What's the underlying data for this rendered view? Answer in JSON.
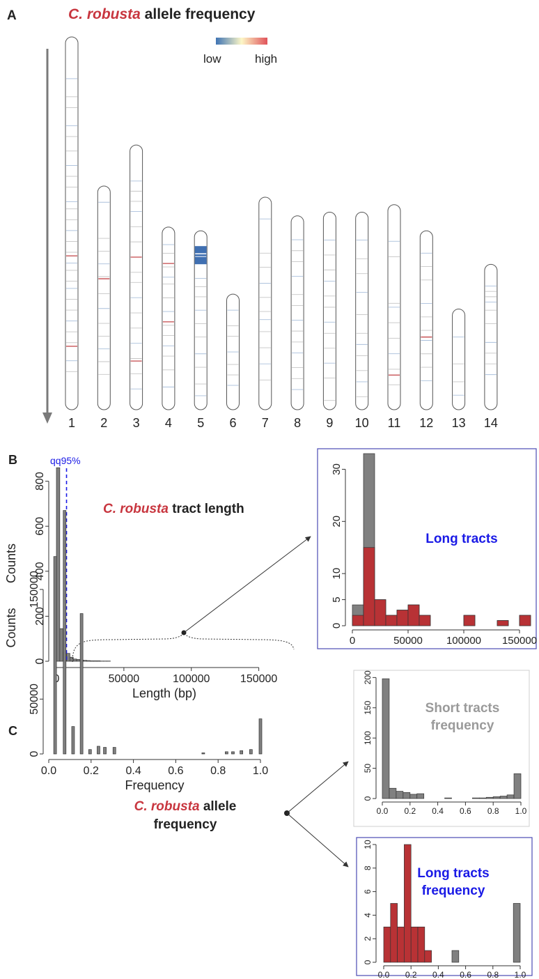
{
  "colors": {
    "robusta_red": "#c8363f",
    "bar_red": "#b83235",
    "bar_grey": "#808080",
    "blue_label": "#1a1ae6",
    "grey_label": "#9a9a9a",
    "axis_grey": "#8a8a8a",
    "scale_low": "#3f74b4",
    "scale_mid": "#fdf7c7",
    "scale_high": "#e0535a"
  },
  "panel_a": {
    "letter": "A",
    "title_species": "C. robusta",
    "title_rest": " allele frequency",
    "scale_low_label": "low",
    "scale_high_label": "high"
  },
  "panel_b": {
    "letter": "B",
    "qq_label": "qq95%",
    "title_species": "C. robusta",
    "title_rest": " tract length",
    "inset_title": "Long tracts"
  },
  "panel_c": {
    "letter": "C",
    "title_species": "C. robusta",
    "title_rest": " allele",
    "title_line2": "frequency",
    "inset_short_title_1": "Short tracts",
    "inset_short_title_2": "frequency",
    "inset_long_title_1": "Long tracts",
    "inset_long_title_2": "frequency"
  },
  "chart_data": [
    {
      "type": "ideogram",
      "chromosomes": [
        "1",
        "2",
        "3",
        "4",
        "5",
        "6",
        "7",
        "8",
        "9",
        "10",
        "11",
        "12",
        "13",
        "14"
      ],
      "relative_length": [
        1.0,
        0.6,
        0.71,
        0.49,
        0.48,
        0.31,
        0.57,
        0.52,
        0.53,
        0.53,
        0.55,
        0.48,
        0.27,
        0.39
      ],
      "scale": "blue-yellow-red (low to high)"
    },
    {
      "type": "bar",
      "xlabel": "Length (bp)",
      "ylabel": "Counts",
      "xlim": [
        0,
        160000
      ],
      "ylim": [
        0,
        870
      ],
      "xticks": [
        0,
        50000,
        100000,
        150000
      ],
      "yticks": [
        0,
        200,
        400,
        600,
        800
      ],
      "bin_width": 2500,
      "values": [
        860,
        145,
        40,
        35,
        18,
        10,
        8,
        5,
        4,
        3,
        2,
        2,
        2,
        1,
        1,
        1
      ],
      "qq95_x": 7500
    },
    {
      "type": "bar",
      "title": "Long tracts",
      "xlim": [
        0,
        160000
      ],
      "ylim": [
        0,
        33
      ],
      "xticks": [
        0,
        50000,
        100000,
        150000
      ],
      "yticks": [
        0,
        5,
        10,
        20,
        30
      ],
      "bin_width": 10000,
      "series": [
        {
          "name": "total",
          "values": [
            4,
            33,
            5,
            2,
            3,
            4,
            2,
            0,
            0,
            0,
            2,
            0,
            0,
            1,
            0,
            2
          ]
        },
        {
          "name": "robusta",
          "values": [
            2,
            15,
            5,
            2,
            3,
            4,
            2,
            0,
            0,
            0,
            2,
            0,
            0,
            1,
            0,
            2
          ]
        }
      ]
    },
    {
      "type": "bar",
      "xlabel": "Frequency",
      "ylabel": "Counts",
      "xlim": [
        0,
        1
      ],
      "ylim": [
        0,
        230000
      ],
      "xticks": [
        "0.0",
        "0.2",
        "0.4",
        "0.6",
        "0.8",
        "1.0"
      ],
      "yticks": [
        0,
        50000,
        150000
      ],
      "x": [
        0.03,
        0.075,
        0.115,
        0.155,
        0.195,
        0.235,
        0.265,
        0.31,
        0.73,
        0.84,
        0.87,
        0.91,
        0.955,
        1.0
      ],
      "values": [
        180000,
        222000,
        25000,
        128000,
        4000,
        7000,
        6000,
        6000,
        1000,
        2000,
        2000,
        3000,
        4000,
        32000
      ]
    },
    {
      "type": "bar",
      "title": "Short tracts frequency",
      "xlim": [
        0,
        1
      ],
      "ylim": [
        0,
        205
      ],
      "xticks": [
        "0.0",
        "0.2",
        "0.4",
        "0.6",
        "0.8",
        "1.0"
      ],
      "yticks": [
        0,
        50,
        100,
        150,
        200
      ],
      "bin_width": 0.05,
      "values": [
        198,
        17,
        12,
        10,
        7,
        8,
        0,
        0,
        0,
        1,
        0,
        0,
        0,
        1,
        1,
        2,
        3,
        4,
        6,
        41
      ]
    },
    {
      "type": "bar",
      "title": "Long tracts frequency",
      "xlim": [
        0,
        1
      ],
      "ylim": [
        0,
        10
      ],
      "xticks": [
        "0.0",
        "0.2",
        "0.4",
        "0.6",
        "0.8",
        "1.0"
      ],
      "yticks": [
        0,
        2,
        4,
        6,
        8,
        10
      ],
      "bin_width": 0.05,
      "series": [
        {
          "name": "grey",
          "values": [
            0,
            0,
            0,
            0,
            0,
            0,
            0,
            0,
            0,
            0,
            1,
            0,
            0,
            0,
            0,
            0,
            0,
            0,
            0,
            5
          ]
        },
        {
          "name": "red",
          "values": [
            3,
            5,
            3,
            10,
            3,
            3,
            1,
            0,
            0,
            0,
            0,
            0,
            0,
            0,
            0,
            0,
            0,
            0,
            0,
            0
          ]
        }
      ]
    }
  ]
}
